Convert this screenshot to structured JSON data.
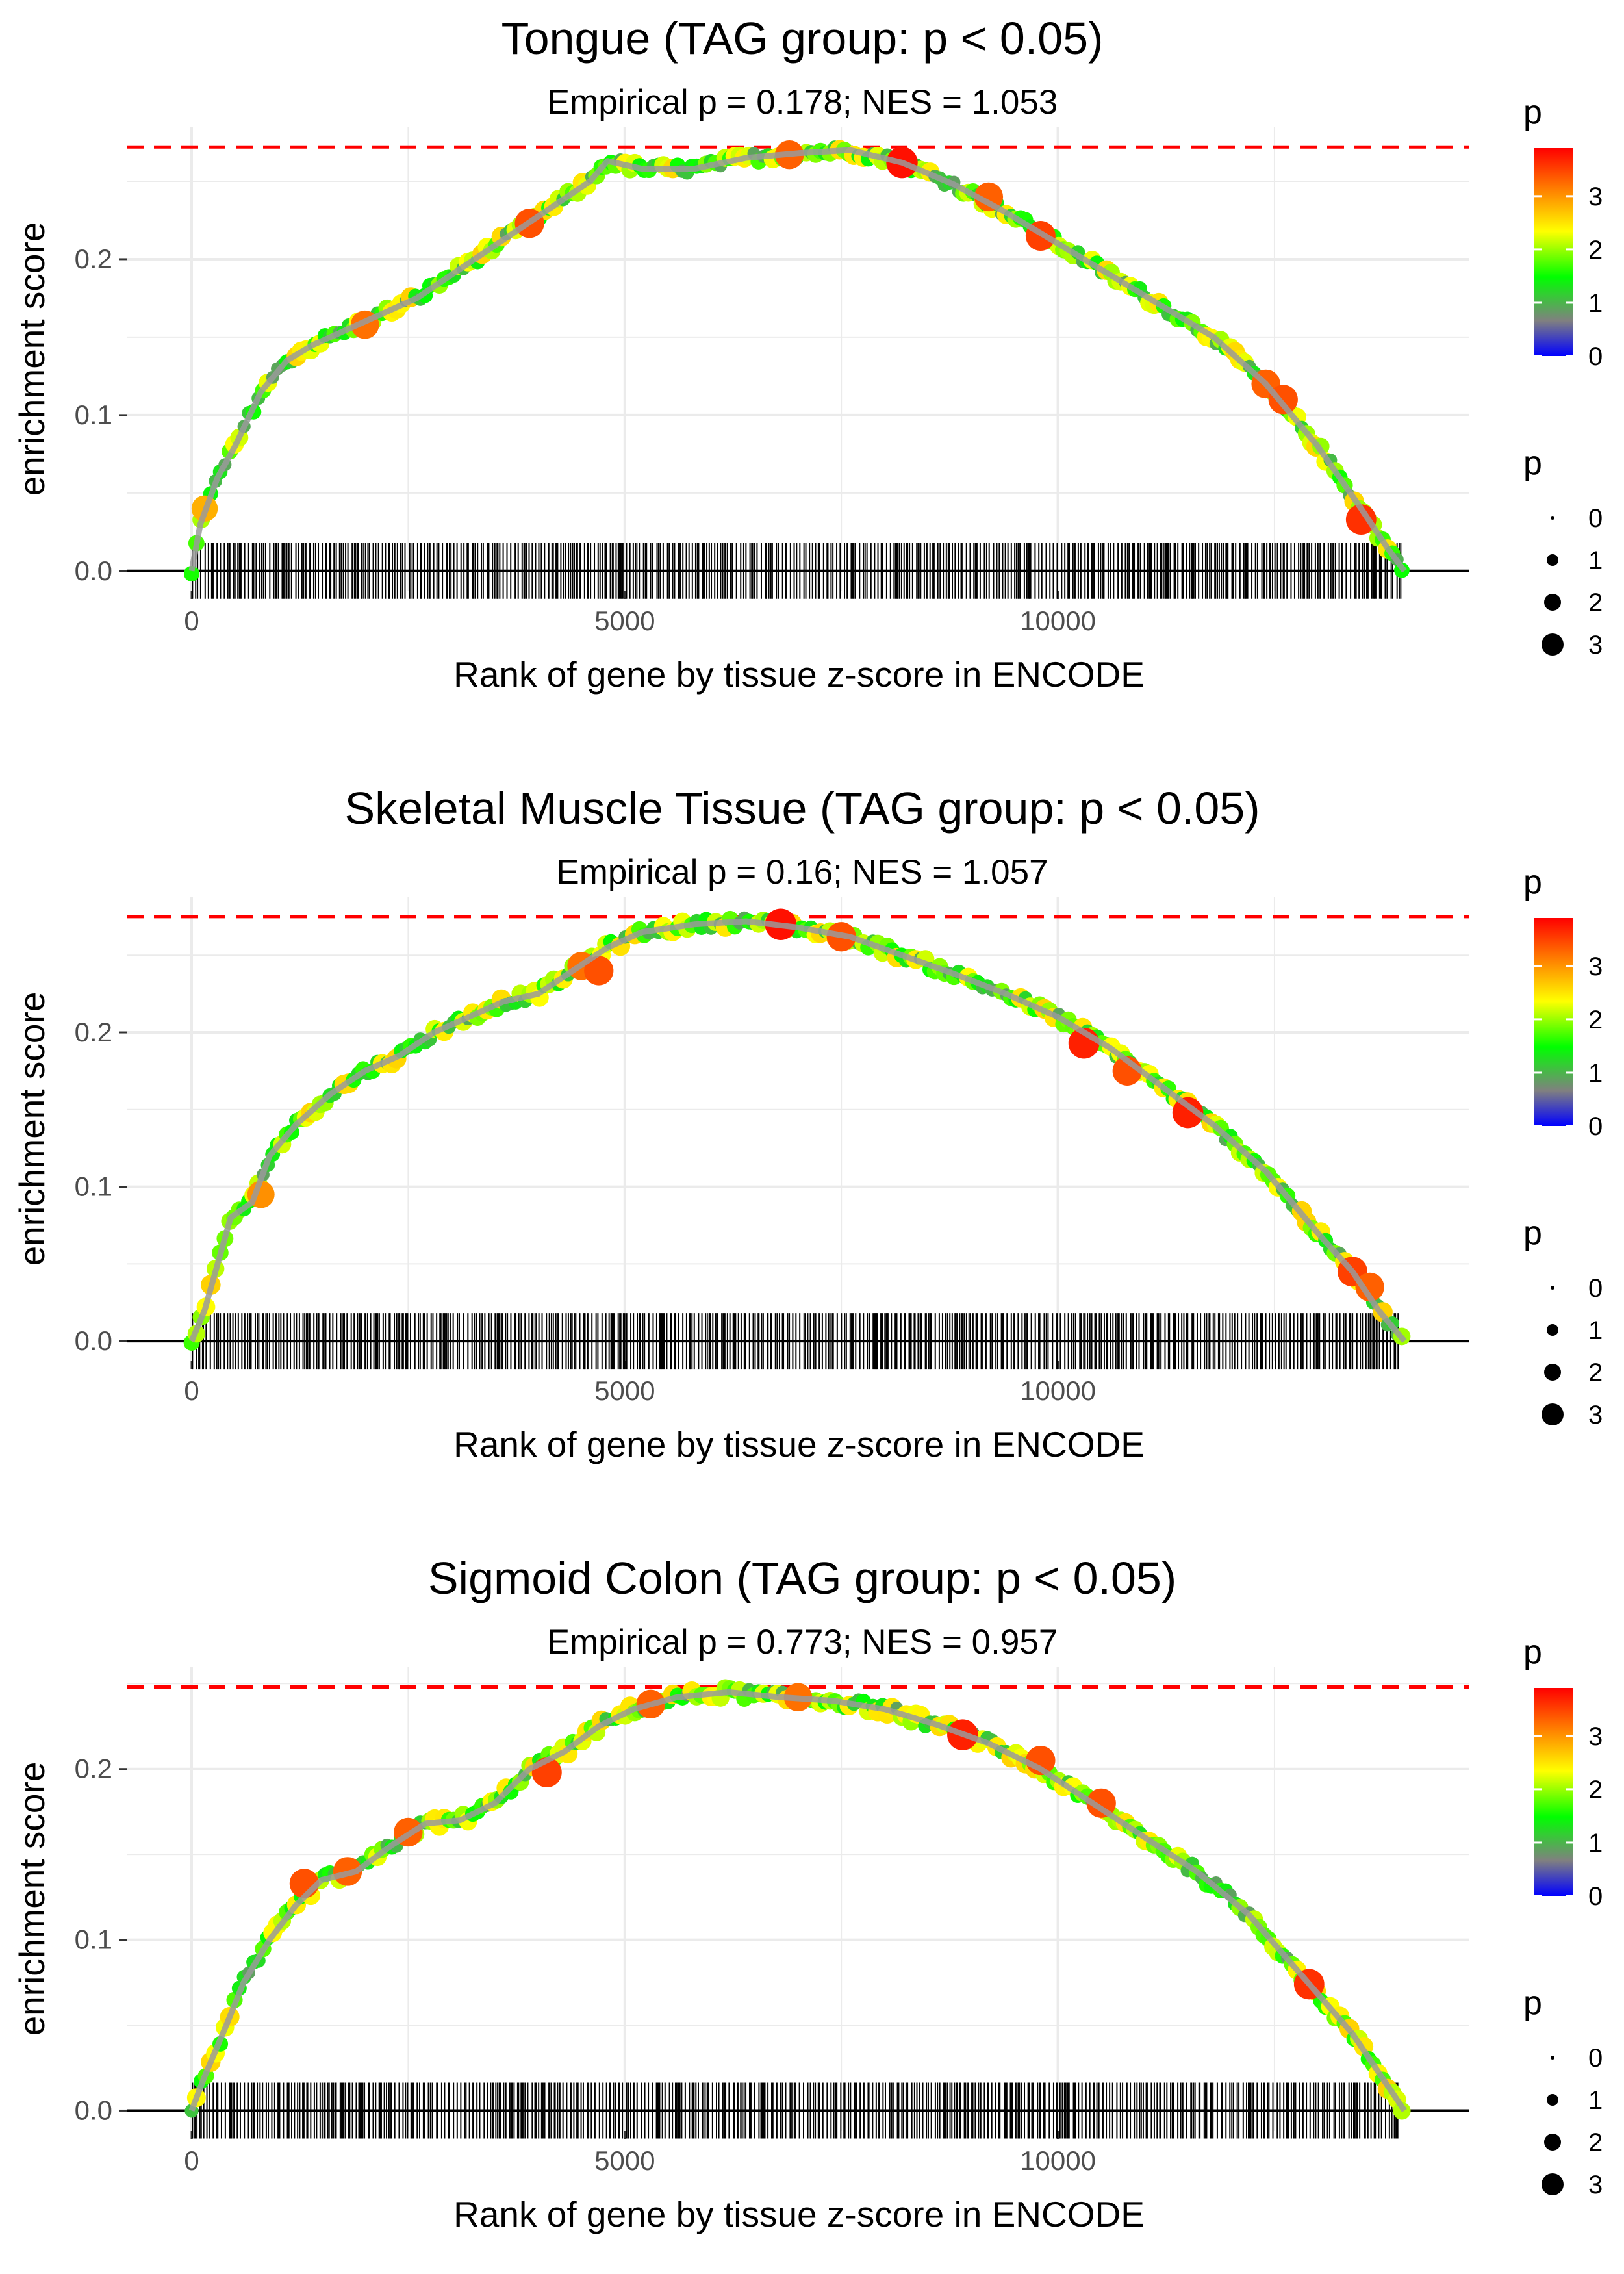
{
  "colors": {
    "threshold_line": "#ff0000",
    "grid": "#ebebeb",
    "curve": "#9a9a9a",
    "rug": "#000000",
    "gradient": [
      "#0000ff",
      "#808080",
      "#00ff00",
      "#ffff00",
      "#ff8000",
      "#ff0000"
    ]
  },
  "chart_data": [
    {
      "type": "line",
      "title": "Tongue (TAG group: p < 0.05)",
      "subtitle": "Empirical p = 0.178; NES = 1.053",
      "xlabel": "Rank of gene by tissue z-score in ENCODE",
      "ylabel": "enrichment score",
      "xlim": [
        -750,
        14750
      ],
      "ylim": [
        -0.013,
        0.285
      ],
      "xticks": [
        {
          "value": 0,
          "label": "0"
        },
        {
          "value": 5000,
          "label": "5000"
        },
        {
          "value": 10000,
          "label": "10000"
        }
      ],
      "yticks": [
        {
          "value": 0.0,
          "label": "0.0"
        },
        {
          "value": 0.1,
          "label": "0.1"
        },
        {
          "value": 0.2,
          "label": "0.2"
        }
      ],
      "max_es": 0.272,
      "curve": [
        [
          0,
          0
        ],
        [
          100,
          0.03
        ],
        [
          300,
          0.06
        ],
        [
          500,
          0.08
        ],
        [
          800,
          0.115
        ],
        [
          1100,
          0.135
        ],
        [
          1400,
          0.145
        ],
        [
          1800,
          0.155
        ],
        [
          2200,
          0.165
        ],
        [
          2600,
          0.175
        ],
        [
          3000,
          0.19
        ],
        [
          3400,
          0.205
        ],
        [
          3800,
          0.22
        ],
        [
          4200,
          0.235
        ],
        [
          4600,
          0.25
        ],
        [
          4800,
          0.263
        ],
        [
          5200,
          0.258
        ],
        [
          5800,
          0.258
        ],
        [
          6400,
          0.265
        ],
        [
          7000,
          0.268
        ],
        [
          7600,
          0.27
        ],
        [
          8200,
          0.262
        ],
        [
          8800,
          0.248
        ],
        [
          9400,
          0.23
        ],
        [
          10000,
          0.21
        ],
        [
          10600,
          0.19
        ],
        [
          11200,
          0.17
        ],
        [
          11800,
          0.15
        ],
        [
          12400,
          0.12
        ],
        [
          13000,
          0.08
        ],
        [
          13500,
          0.04
        ],
        [
          13800,
          0.015
        ],
        [
          14000,
          0
        ]
      ],
      "highlight_points": [
        [
          150,
          0.04,
          2.8
        ],
        [
          2000,
          0.158,
          3.2
        ],
        [
          3900,
          0.223,
          3.4
        ],
        [
          6900,
          0.267,
          3.3
        ],
        [
          8200,
          0.262,
          3.8
        ],
        [
          9200,
          0.24,
          3.3
        ],
        [
          9800,
          0.215,
          3.5
        ],
        [
          12400,
          0.12,
          3.3
        ],
        [
          12600,
          0.11,
          3.4
        ],
        [
          13500,
          0.033,
          3.6
        ]
      ],
      "color_legend": {
        "title": "p",
        "labels": [
          "0",
          "1",
          "2",
          "3"
        ]
      },
      "size_legend": {
        "title": "p",
        "labels": [
          "0",
          "1",
          "2",
          "3"
        ]
      }
    },
    {
      "type": "line",
      "title": "Skeletal Muscle Tissue (TAG group: p < 0.05)",
      "subtitle": "Empirical p = 0.16; NES = 1.057",
      "xlabel": "Rank of gene by tissue z-score in ENCODE",
      "ylabel": "enrichment score",
      "xlim": [
        -750,
        14750
      ],
      "ylim": [
        -0.013,
        0.288
      ],
      "xticks": [
        {
          "value": 0,
          "label": "0"
        },
        {
          "value": 5000,
          "label": "5000"
        },
        {
          "value": 10000,
          "label": "10000"
        }
      ],
      "yticks": [
        {
          "value": 0.0,
          "label": "0.0"
        },
        {
          "value": 0.1,
          "label": "0.1"
        },
        {
          "value": 0.2,
          "label": "0.2"
        }
      ],
      "max_es": 0.275,
      "curve": [
        [
          0,
          0
        ],
        [
          150,
          0.02
        ],
        [
          300,
          0.05
        ],
        [
          450,
          0.08
        ],
        [
          700,
          0.09
        ],
        [
          900,
          0.12
        ],
        [
          1200,
          0.14
        ],
        [
          1600,
          0.16
        ],
        [
          2000,
          0.175
        ],
        [
          2400,
          0.185
        ],
        [
          2800,
          0.2
        ],
        [
          3200,
          0.21
        ],
        [
          3600,
          0.22
        ],
        [
          4000,
          0.225
        ],
        [
          4400,
          0.24
        ],
        [
          4800,
          0.255
        ],
        [
          5200,
          0.265
        ],
        [
          5800,
          0.27
        ],
        [
          6400,
          0.272
        ],
        [
          7000,
          0.268
        ],
        [
          7600,
          0.262
        ],
        [
          8200,
          0.25
        ],
        [
          8800,
          0.238
        ],
        [
          9400,
          0.225
        ],
        [
          10000,
          0.21
        ],
        [
          10600,
          0.19
        ],
        [
          11200,
          0.165
        ],
        [
          11800,
          0.14
        ],
        [
          12400,
          0.11
        ],
        [
          13000,
          0.07
        ],
        [
          13400,
          0.045
        ],
        [
          13700,
          0.02
        ],
        [
          14000,
          0
        ]
      ],
      "highlight_points": [
        [
          800,
          0.095,
          3.0
        ],
        [
          4500,
          0.243,
          3.2
        ],
        [
          4700,
          0.24,
          3.4
        ],
        [
          6800,
          0.27,
          3.8
        ],
        [
          7500,
          0.262,
          3.4
        ],
        [
          10300,
          0.193,
          3.7
        ],
        [
          10800,
          0.175,
          3.4
        ],
        [
          11500,
          0.148,
          3.7
        ],
        [
          13400,
          0.045,
          3.5
        ],
        [
          13600,
          0.035,
          3.3
        ]
      ],
      "color_legend": {
        "title": "p",
        "labels": [
          "0",
          "1",
          "2",
          "3"
        ]
      },
      "size_legend": {
        "title": "p",
        "labels": [
          "0",
          "1",
          "2",
          "3"
        ]
      }
    },
    {
      "type": "line",
      "title": "Sigmoid Colon (TAG group: p < 0.05)",
      "subtitle": "Empirical p = 0.773; NES = 0.957",
      "xlabel": "Rank of gene by tissue z-score in ENCODE",
      "ylabel": "enrichment score",
      "xlim": [
        -750,
        14750
      ],
      "ylim": [
        -0.012,
        0.26
      ],
      "xticks": [
        {
          "value": 0,
          "label": "0"
        },
        {
          "value": 5000,
          "label": "5000"
        },
        {
          "value": 10000,
          "label": "10000"
        }
      ],
      "yticks": [
        {
          "value": 0.0,
          "label": "0.0"
        },
        {
          "value": 0.1,
          "label": "0.1"
        },
        {
          "value": 0.2,
          "label": "0.2"
        }
      ],
      "max_es": 0.248,
      "curve": [
        [
          0,
          0
        ],
        [
          150,
          0.02
        ],
        [
          400,
          0.05
        ],
        [
          600,
          0.075
        ],
        [
          900,
          0.1
        ],
        [
          1200,
          0.12
        ],
        [
          1500,
          0.135
        ],
        [
          1900,
          0.14
        ],
        [
          2300,
          0.155
        ],
        [
          2700,
          0.168
        ],
        [
          3100,
          0.17
        ],
        [
          3500,
          0.18
        ],
        [
          3900,
          0.2
        ],
        [
          4300,
          0.21
        ],
        [
          4700,
          0.225
        ],
        [
          5100,
          0.235
        ],
        [
          5600,
          0.242
        ],
        [
          6200,
          0.245
        ],
        [
          6800,
          0.242
        ],
        [
          7400,
          0.24
        ],
        [
          8000,
          0.235
        ],
        [
          8600,
          0.226
        ],
        [
          9200,
          0.215
        ],
        [
          9800,
          0.2
        ],
        [
          10400,
          0.18
        ],
        [
          11000,
          0.16
        ],
        [
          11600,
          0.14
        ],
        [
          12200,
          0.115
        ],
        [
          12800,
          0.08
        ],
        [
          13400,
          0.045
        ],
        [
          13800,
          0.015
        ],
        [
          14000,
          0
        ]
      ],
      "highlight_points": [
        [
          1300,
          0.133,
          3.4
        ],
        [
          1800,
          0.14,
          3.3
        ],
        [
          2500,
          0.163,
          3.3
        ],
        [
          4100,
          0.198,
          3.5
        ],
        [
          5300,
          0.238,
          3.3
        ],
        [
          7000,
          0.242,
          3.2
        ],
        [
          8900,
          0.22,
          3.7
        ],
        [
          9800,
          0.205,
          3.4
        ],
        [
          10500,
          0.18,
          3.4
        ],
        [
          12900,
          0.074,
          3.6
        ]
      ],
      "color_legend": {
        "title": "p",
        "labels": [
          "0",
          "1",
          "2",
          "3"
        ]
      },
      "size_legend": {
        "title": "p",
        "labels": [
          "0",
          "1",
          "2",
          "3"
        ]
      }
    }
  ]
}
